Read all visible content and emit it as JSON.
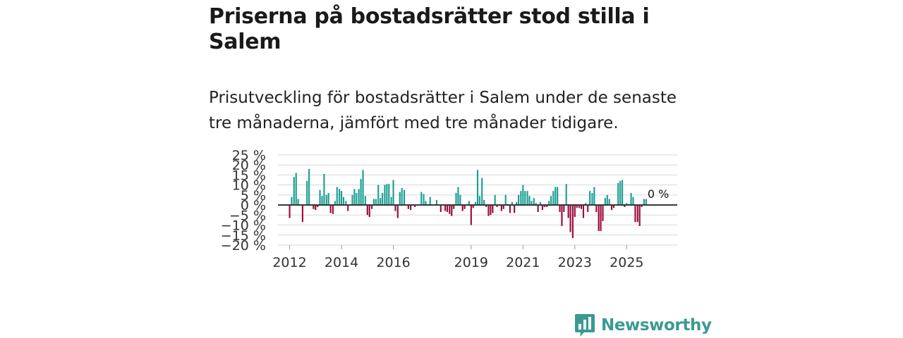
{
  "header": {
    "title": "Priserna på bostadsrätter stod stilla i Salem",
    "subtitle": "Prisutveckling för bostadsrätter i Salem under de senaste tre månaderna, jämfört med tre månader tidigare."
  },
  "brand": {
    "name": "Newsworthy"
  },
  "colors": {
    "positive": "#1a9e91",
    "negative": "#9b0a3d",
    "grid": "#d9d9d9",
    "zero_line": "#333333",
    "brand": "#3a9a92"
  },
  "chart_data": {
    "type": "bar",
    "title": "Priserna på bostadsrätter stod stilla i Salem",
    "xlabel": "",
    "ylabel": "",
    "ylim": [
      -20,
      25
    ],
    "xlim": [
      2011.55,
      2026.95
    ],
    "yticks": [
      25,
      20,
      15,
      10,
      5,
      0,
      -5,
      -10,
      -15,
      -20
    ],
    "ytick_labels": [
      "25 %",
      "20 %",
      "15 %",
      "10 %",
      "5 %",
      "0 %",
      "−5 %",
      "−10 %",
      "−15 %",
      "−20 %"
    ],
    "xticks": [
      2012,
      2014,
      2016,
      2019,
      2021,
      2023,
      2025
    ],
    "xtick_labels": [
      "2012",
      "2014",
      "2016",
      "2019",
      "2021",
      "2023",
      "2025"
    ],
    "bar_width_years": 0.058,
    "annotation": {
      "x": 2026.0,
      "y": 0,
      "text": "0 %"
    },
    "series": [
      {
        "name": "Prisutveckling",
        "points": [
          [
            2012.0,
            -6.5
          ],
          [
            2012.08,
            4
          ],
          [
            2012.17,
            14
          ],
          [
            2012.25,
            16
          ],
          [
            2012.33,
            3
          ],
          [
            2012.5,
            -8.5
          ],
          [
            2012.67,
            12
          ],
          [
            2012.75,
            18
          ],
          [
            2012.92,
            -2
          ],
          [
            2013.0,
            -2.5
          ],
          [
            2013.08,
            -1
          ],
          [
            2013.17,
            7.5
          ],
          [
            2013.25,
            4.5
          ],
          [
            2013.33,
            15.5
          ],
          [
            2013.42,
            5
          ],
          [
            2013.5,
            6
          ],
          [
            2013.58,
            -4
          ],
          [
            2013.67,
            -4.5
          ],
          [
            2013.75,
            2
          ],
          [
            2013.83,
            9
          ],
          [
            2013.92,
            8
          ],
          [
            2014.0,
            7
          ],
          [
            2014.08,
            4
          ],
          [
            2014.17,
            2
          ],
          [
            2014.25,
            -3
          ],
          [
            2014.42,
            5
          ],
          [
            2014.5,
            8
          ],
          [
            2014.58,
            6
          ],
          [
            2014.67,
            8
          ],
          [
            2014.75,
            13
          ],
          [
            2014.83,
            17.5
          ],
          [
            2014.92,
            4.5
          ],
          [
            2015.0,
            -5
          ],
          [
            2015.08,
            -6
          ],
          [
            2015.17,
            -2
          ],
          [
            2015.25,
            3
          ],
          [
            2015.33,
            3
          ],
          [
            2015.42,
            10
          ],
          [
            2015.5,
            3.5
          ],
          [
            2015.58,
            6
          ],
          [
            2015.67,
            10
          ],
          [
            2015.75,
            10.5
          ],
          [
            2015.83,
            10.5
          ],
          [
            2015.92,
            4
          ],
          [
            2016.0,
            12.5
          ],
          [
            2016.08,
            -3
          ],
          [
            2016.17,
            -6.5
          ],
          [
            2016.25,
            6.5
          ],
          [
            2016.33,
            8.5
          ],
          [
            2016.42,
            7.5
          ],
          [
            2016.58,
            -2
          ],
          [
            2016.67,
            -2.5
          ],
          [
            2016.83,
            -1
          ],
          [
            2017.08,
            6.5
          ],
          [
            2017.17,
            5.5
          ],
          [
            2017.25,
            2
          ],
          [
            2017.33,
            0.5
          ],
          [
            2017.42,
            4
          ],
          [
            2017.67,
            2.5
          ],
          [
            2017.83,
            -3.5
          ],
          [
            2018.0,
            -3
          ],
          [
            2018.08,
            -3.5
          ],
          [
            2018.17,
            -4.5
          ],
          [
            2018.25,
            -5.5
          ],
          [
            2018.33,
            -2
          ],
          [
            2018.42,
            6
          ],
          [
            2018.5,
            9
          ],
          [
            2018.58,
            5
          ],
          [
            2018.67,
            -3
          ],
          [
            2018.75,
            -2
          ],
          [
            2018.92,
            2
          ],
          [
            2019.0,
            -10
          ],
          [
            2019.08,
            -1.5
          ],
          [
            2019.17,
            1.5
          ],
          [
            2019.25,
            17.5
          ],
          [
            2019.33,
            4.5
          ],
          [
            2019.42,
            13.5
          ],
          [
            2019.5,
            2.5
          ],
          [
            2019.58,
            -1
          ],
          [
            2019.67,
            -5.5
          ],
          [
            2019.75,
            -5
          ],
          [
            2019.83,
            -4
          ],
          [
            2019.92,
            5
          ],
          [
            2020.0,
            -1
          ],
          [
            2020.17,
            -3
          ],
          [
            2020.25,
            -2
          ],
          [
            2020.33,
            5
          ],
          [
            2020.42,
            0.5
          ],
          [
            2020.5,
            -4
          ],
          [
            2020.58,
            1.5
          ],
          [
            2020.67,
            -4
          ],
          [
            2020.75,
            1.5
          ],
          [
            2020.83,
            5
          ],
          [
            2020.92,
            7
          ],
          [
            2021.0,
            10
          ],
          [
            2021.08,
            7
          ],
          [
            2021.17,
            7
          ],
          [
            2021.25,
            4.5
          ],
          [
            2021.33,
            2
          ],
          [
            2021.42,
            3.5
          ],
          [
            2021.5,
            1
          ],
          [
            2021.58,
            -3.5
          ],
          [
            2021.67,
            1.5
          ],
          [
            2021.75,
            -2.5
          ],
          [
            2021.83,
            -1
          ],
          [
            2021.92,
            -1
          ],
          [
            2022.0,
            2
          ],
          [
            2022.08,
            4.5
          ],
          [
            2022.17,
            7
          ],
          [
            2022.25,
            9
          ],
          [
            2022.33,
            9
          ],
          [
            2022.42,
            -3.5
          ],
          [
            2022.5,
            -10.5
          ],
          [
            2022.58,
            -3.5
          ],
          [
            2022.67,
            10.5
          ],
          [
            2022.75,
            -6.5
          ],
          [
            2022.83,
            -13.5
          ],
          [
            2022.92,
            -16.5
          ],
          [
            2023.0,
            -6
          ],
          [
            2023.08,
            -1.5
          ],
          [
            2023.17,
            -1.5
          ],
          [
            2023.25,
            -2
          ],
          [
            2023.33,
            -6.5
          ],
          [
            2023.42,
            1
          ],
          [
            2023.5,
            -3.5
          ],
          [
            2023.58,
            7
          ],
          [
            2023.67,
            6
          ],
          [
            2023.75,
            9
          ],
          [
            2023.83,
            -3.5
          ],
          [
            2023.92,
            -13
          ],
          [
            2024.0,
            -13
          ],
          [
            2024.08,
            -8
          ],
          [
            2024.17,
            3.5
          ],
          [
            2024.25,
            5
          ],
          [
            2024.33,
            3
          ],
          [
            2024.42,
            -2.5
          ],
          [
            2024.5,
            -1.5
          ],
          [
            2024.67,
            11
          ],
          [
            2024.75,
            12
          ],
          [
            2024.83,
            12.5
          ],
          [
            2024.92,
            -1
          ],
          [
            2025.0,
            1
          ],
          [
            2025.08,
            0.5
          ],
          [
            2025.17,
            6
          ],
          [
            2025.25,
            4
          ],
          [
            2025.33,
            -8.5
          ],
          [
            2025.42,
            -8.5
          ],
          [
            2025.5,
            -10.5
          ],
          [
            2025.58,
            -1
          ],
          [
            2025.67,
            3
          ],
          [
            2025.75,
            3
          ]
        ]
      }
    ]
  }
}
